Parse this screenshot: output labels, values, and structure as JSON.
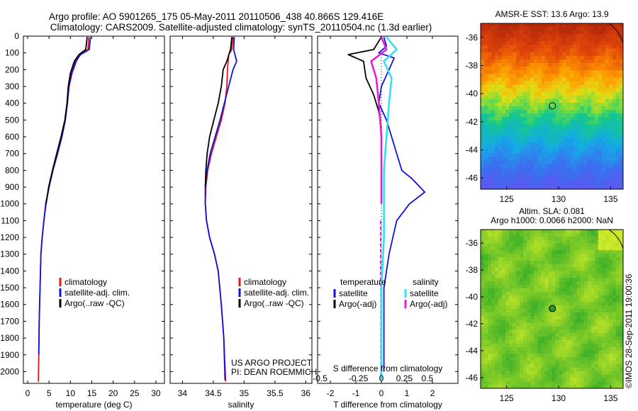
{
  "header": {
    "line1": "Argo profile: AO 5901265_175 05-May-2011 20110506_438 40.866S 129.416E",
    "line2": "Climatology: CARS2009. Satellite-adjusted climatology: synTS_20110504.nc (1.3d earlier)"
  },
  "credit": "©IMOS 28-Sep-2011 19:00:36",
  "colors": {
    "clim": "#e8141a",
    "sat": "#1010e0",
    "argo": "#000000",
    "sal_sat": "#33e0f0",
    "sal_argo": "#e020d8"
  },
  "chart_data": [
    {
      "type": "line",
      "xlabel": "temperature (deg C)",
      "xlim": [
        -1,
        32
      ],
      "xticks": [
        0,
        5,
        10,
        15,
        20,
        25,
        30
      ],
      "ylim": [
        0,
        2070
      ],
      "yticks": [
        0,
        100,
        200,
        300,
        400,
        500,
        600,
        700,
        800,
        900,
        1000,
        1100,
        1200,
        1300,
        1400,
        1500,
        1600,
        1700,
        1800,
        1900,
        2000
      ],
      "legend": [
        "climatology",
        "satellite-adj. clim.",
        "Argo(..raw -QC)"
      ],
      "series": [
        {
          "name": "climatology",
          "color": "#e8141a",
          "x": [
            14.3,
            14.1,
            12.2,
            11.4,
            10.4,
            9.7,
            9.3,
            8.8,
            8.0,
            7.0,
            5.9,
            5.0,
            4.3,
            3.8,
            3.4,
            3.1,
            2.9,
            2.7,
            2.6,
            2.5
          ],
          "y": [
            5,
            80,
            110,
            150,
            220,
            300,
            400,
            500,
            600,
            700,
            800,
            900,
            1000,
            1100,
            1200,
            1300,
            1500,
            1700,
            1900,
            2060
          ]
        },
        {
          "name": "satellite-adj. clim.",
          "color": "#1010e0",
          "x": [
            14.7,
            14.4,
            12.4,
            11.2,
            10.3,
            9.6,
            9.3,
            8.8,
            8.0,
            7.0,
            5.9,
            5.0,
            4.2,
            3.8,
            3.4,
            3.1,
            2.9,
            2.7,
            2.6
          ],
          "y": [
            5,
            80,
            110,
            150,
            220,
            300,
            400,
            500,
            600,
            700,
            800,
            900,
            1000,
            1100,
            1200,
            1300,
            1500,
            1700,
            1900
          ]
        },
        {
          "name": "Argo(..raw -QC)",
          "color": "#000000",
          "x": [
            13.9,
            13.6,
            12.0,
            10.9,
            10.0,
            9.5,
            9.2,
            8.7,
            7.8,
            6.8,
            5.8,
            4.9,
            4.3
          ],
          "y": [
            5,
            80,
            110,
            150,
            220,
            300,
            400,
            500,
            600,
            700,
            800,
            900,
            1000
          ]
        }
      ]
    },
    {
      "type": "line",
      "xlabel": "salinity",
      "xlim": [
        33.8,
        36.1
      ],
      "xticks": [
        34,
        34.5,
        35,
        35.5,
        36
      ],
      "ylim": [
        0,
        2070
      ],
      "legend": [
        "climatology",
        "satellite-adj. clim.",
        "Argo(..raw -QC)"
      ],
      "annotation": [
        "US ARGO PROJECT",
        "PI: DEAN ROEMMICH"
      ],
      "series": [
        {
          "name": "climatology",
          "color": "#e8141a",
          "x": [
            34.82,
            34.8,
            34.75,
            34.73,
            34.72,
            34.69,
            34.63,
            34.55,
            34.47,
            34.41,
            34.38,
            34.37,
            34.39,
            34.44,
            34.52,
            34.58,
            34.63,
            34.67,
            34.7
          ],
          "y": [
            5,
            80,
            110,
            200,
            300,
            400,
            500,
            600,
            700,
            800,
            900,
            1000,
            1100,
            1200,
            1300,
            1400,
            1600,
            1800,
            2060
          ]
        },
        {
          "name": "satellite-adj. clim.",
          "color": "#1010e0",
          "x": [
            34.84,
            34.83,
            34.88,
            34.82,
            34.75,
            34.68,
            34.61,
            34.53,
            34.45,
            34.4,
            34.37,
            34.37,
            34.39,
            34.44,
            34.52,
            34.58,
            34.63,
            34.67,
            34.69
          ],
          "y": [
            5,
            80,
            150,
            200,
            300,
            400,
            500,
            600,
            700,
            800,
            900,
            1000,
            1100,
            1200,
            1300,
            1400,
            1600,
            1800,
            2050
          ]
        },
        {
          "name": "Argo(..raw -QC)",
          "color": "#000000",
          "x": [
            34.8,
            34.78,
            34.72,
            34.66,
            34.63,
            34.58,
            34.51,
            34.44,
            34.4,
            34.38,
            34.37
          ],
          "y": [
            5,
            80,
            150,
            200,
            300,
            400,
            500,
            600,
            700,
            800,
            900
          ]
        }
      ]
    },
    {
      "type": "line",
      "xlabel": "T difference from climatology",
      "x2label": "S difference from climatology",
      "xlim": [
        -2.5,
        3.0
      ],
      "xticks": [
        -2,
        -1,
        0,
        1,
        2
      ],
      "x2ticks": [
        "-0.5",
        "-0.25",
        "0",
        "0.25",
        "0.5"
      ],
      "ylim": [
        0,
        2070
      ],
      "legend_titles": [
        "temperature",
        "salinity"
      ],
      "legend": [
        "satellite",
        "Argo(-adj)",
        "satellite",
        "Argo(-adj)"
      ],
      "series": [
        {
          "name": "T satellite",
          "color": "#1010e0",
          "x": [
            0.1,
            0.2,
            -0.1,
            0.5,
            0.3,
            0.0,
            -0.1,
            0.2,
            0.4,
            0.6,
            0.8,
            1.2,
            1.7,
            1.1,
            0.6,
            0.3,
            0.1,
            0.1,
            0.1,
            0.1
          ],
          "y": [
            5,
            60,
            100,
            130,
            200,
            300,
            400,
            500,
            600,
            700,
            800,
            850,
            930,
            1000,
            1100,
            1300,
            1500,
            1700,
            1900,
            2000
          ]
        },
        {
          "name": "T Argo(-adj)",
          "color": "#000000",
          "x": [
            0.0,
            -0.3,
            -1.3,
            -0.7,
            -0.6,
            -0.3,
            -0.1,
            0.0
          ],
          "y": [
            5,
            80,
            110,
            150,
            250,
            350,
            450,
            550
          ]
        },
        {
          "name": "S satellite",
          "color": "#33e0f0",
          "x": [
            0.2,
            0.6,
            0.1,
            0.4,
            0.3,
            0.2,
            0.1,
            0.1,
            0.1,
            0.0,
            0.0,
            0.0
          ],
          "y": [
            5,
            80,
            150,
            250,
            400,
            600,
            800,
            1000,
            1200,
            1500,
            1800,
            2050
          ]
        },
        {
          "name": "S Argo(-adj)",
          "color": "#e020d8",
          "x": [
            0.0,
            0.2,
            -0.4,
            -0.2,
            -0.1,
            0.0,
            0.0,
            0.0
          ],
          "y": [
            5,
            80,
            150,
            250,
            400,
            600,
            800,
            1000
          ]
        }
      ]
    },
    {
      "type": "heatmap",
      "title": "AMSR-E SST: 13.6 Argo: 13.9",
      "xticks": [
        125,
        130,
        135
      ],
      "yticks": [
        -36,
        -38,
        -40,
        -42,
        -44,
        -46
      ],
      "xlim": [
        122.5,
        136.2
      ],
      "ylim": [
        -46.8,
        -35.0
      ],
      "marker": {
        "lon": 129.4,
        "lat": -40.87
      }
    },
    {
      "type": "heatmap",
      "title_lines": [
        "Altim. SLA: 0.081",
        "Argo h1000: 0.0066 h2000: NaN"
      ],
      "xticks": [
        125,
        130,
        135
      ],
      "yticks": [
        -36,
        -38,
        -40,
        -42,
        -44,
        -46
      ],
      "xlim": [
        122.5,
        136.2
      ],
      "ylim": [
        -46.8,
        -35.0
      ],
      "marker": {
        "lon": 129.4,
        "lat": -40.87
      }
    }
  ]
}
